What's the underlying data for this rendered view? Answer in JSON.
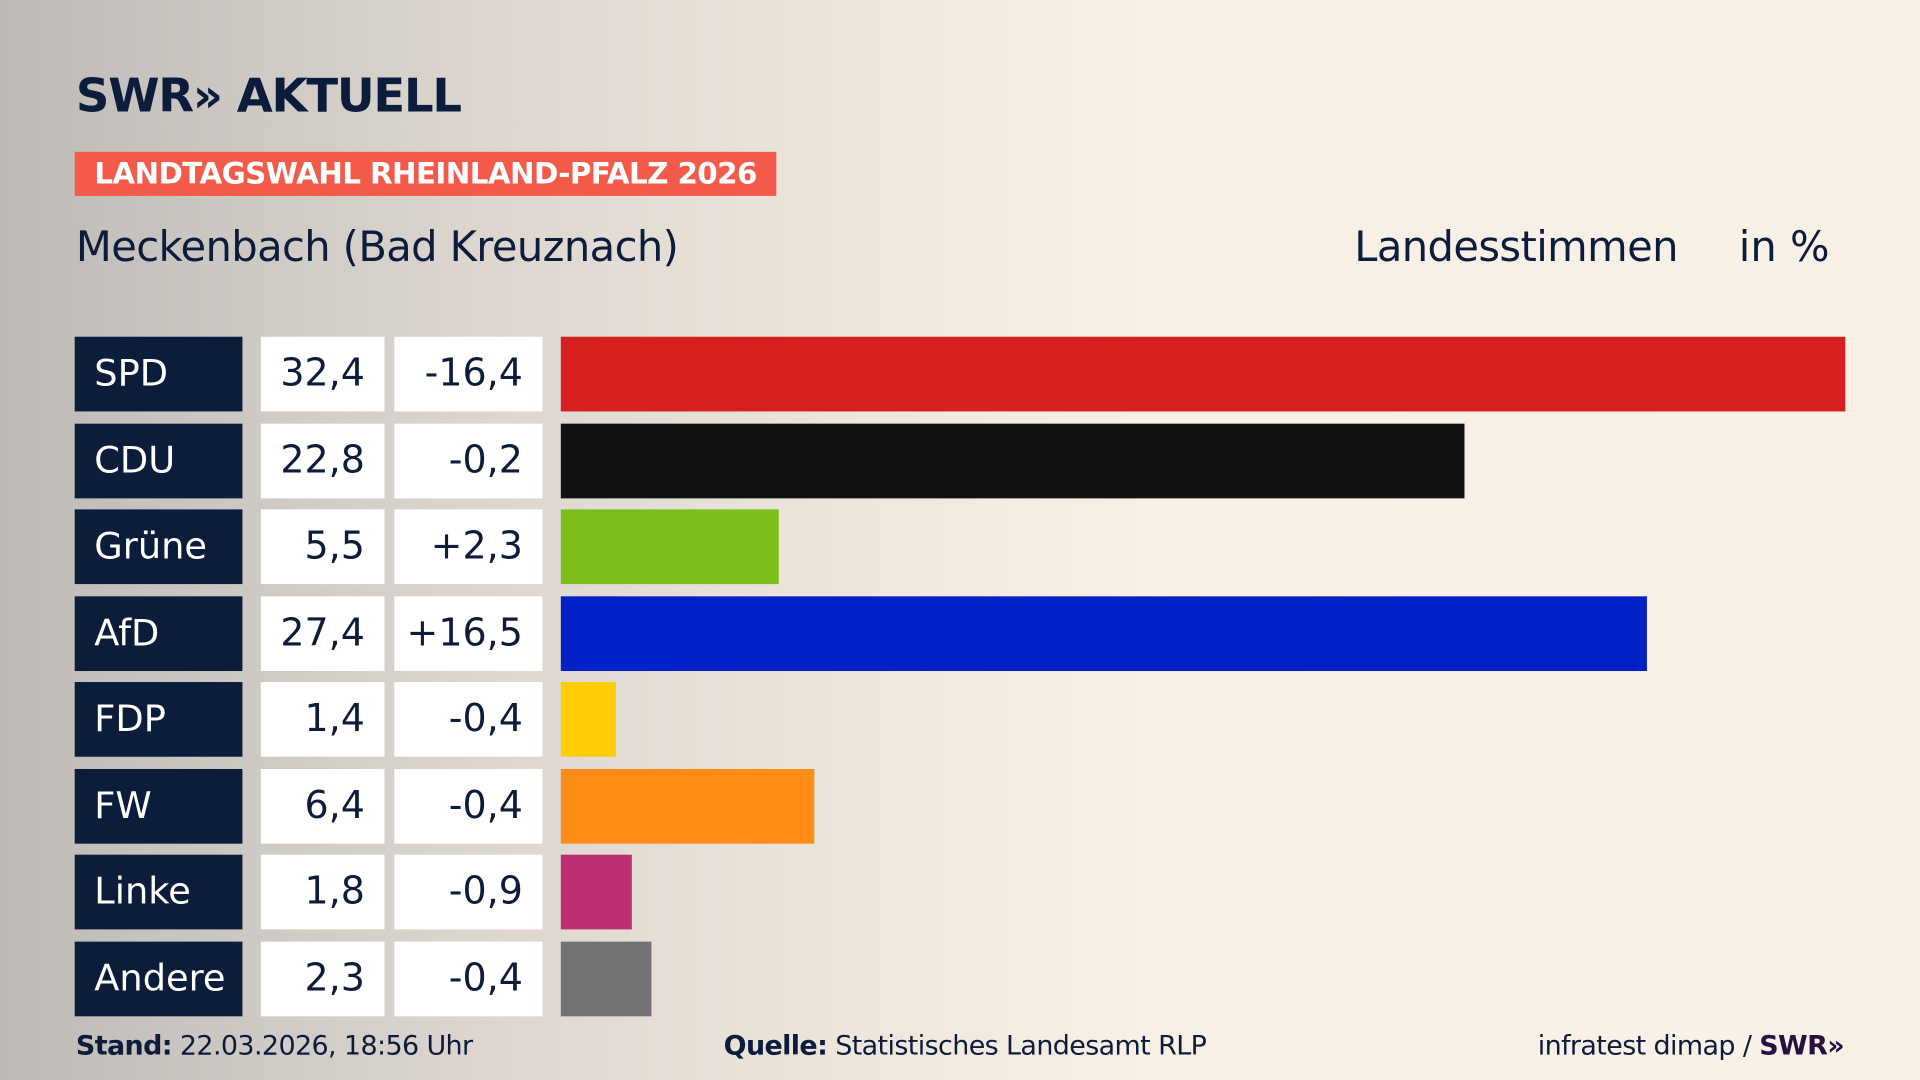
{
  "header": {
    "logo": "SWR» AKTUELL",
    "badge": "LANDTAGSWAHL RHEINLAND-PFALZ 2026",
    "location": "Meckenbach (Bad Kreuznach)",
    "measure": "Landesstimmen",
    "unit": "in %"
  },
  "chart_data": {
    "type": "bar",
    "orientation": "horizontal",
    "title": "Meckenbach (Bad Kreuznach)",
    "xlim": [
      0,
      32.4
    ],
    "categories": [
      "SPD",
      "CDU",
      "Grüne",
      "AfD",
      "FDP",
      "FW",
      "Linke",
      "Andere"
    ],
    "values": [
      32.4,
      22.8,
      5.5,
      27.4,
      1.4,
      6.4,
      1.8,
      2.3
    ],
    "value_labels": [
      "32,4",
      "22,8",
      "5,5",
      "27,4",
      "1,4",
      "6,4",
      "1,8",
      "2,3"
    ],
    "diff_labels": [
      "-16,4",
      "-0,2",
      "+2,3",
      "+16,5",
      "-0,4",
      "-0,4",
      "-0,9",
      "-0,4"
    ],
    "colors": [
      "#d62020",
      "#121212",
      "#7bbe1c",
      "#0021c8",
      "#ffcc05",
      "#ff8c16",
      "#be2f72",
      "#727274"
    ]
  },
  "footer": {
    "stand_label": "Stand:",
    "stand_value": "22.03.2026, 18:56 Uhr",
    "source_label": "Quelle:",
    "source_value": "Statistisches Landesamt RLP",
    "credit": "infratest dimap / ",
    "credit_logo": "SWR»"
  }
}
